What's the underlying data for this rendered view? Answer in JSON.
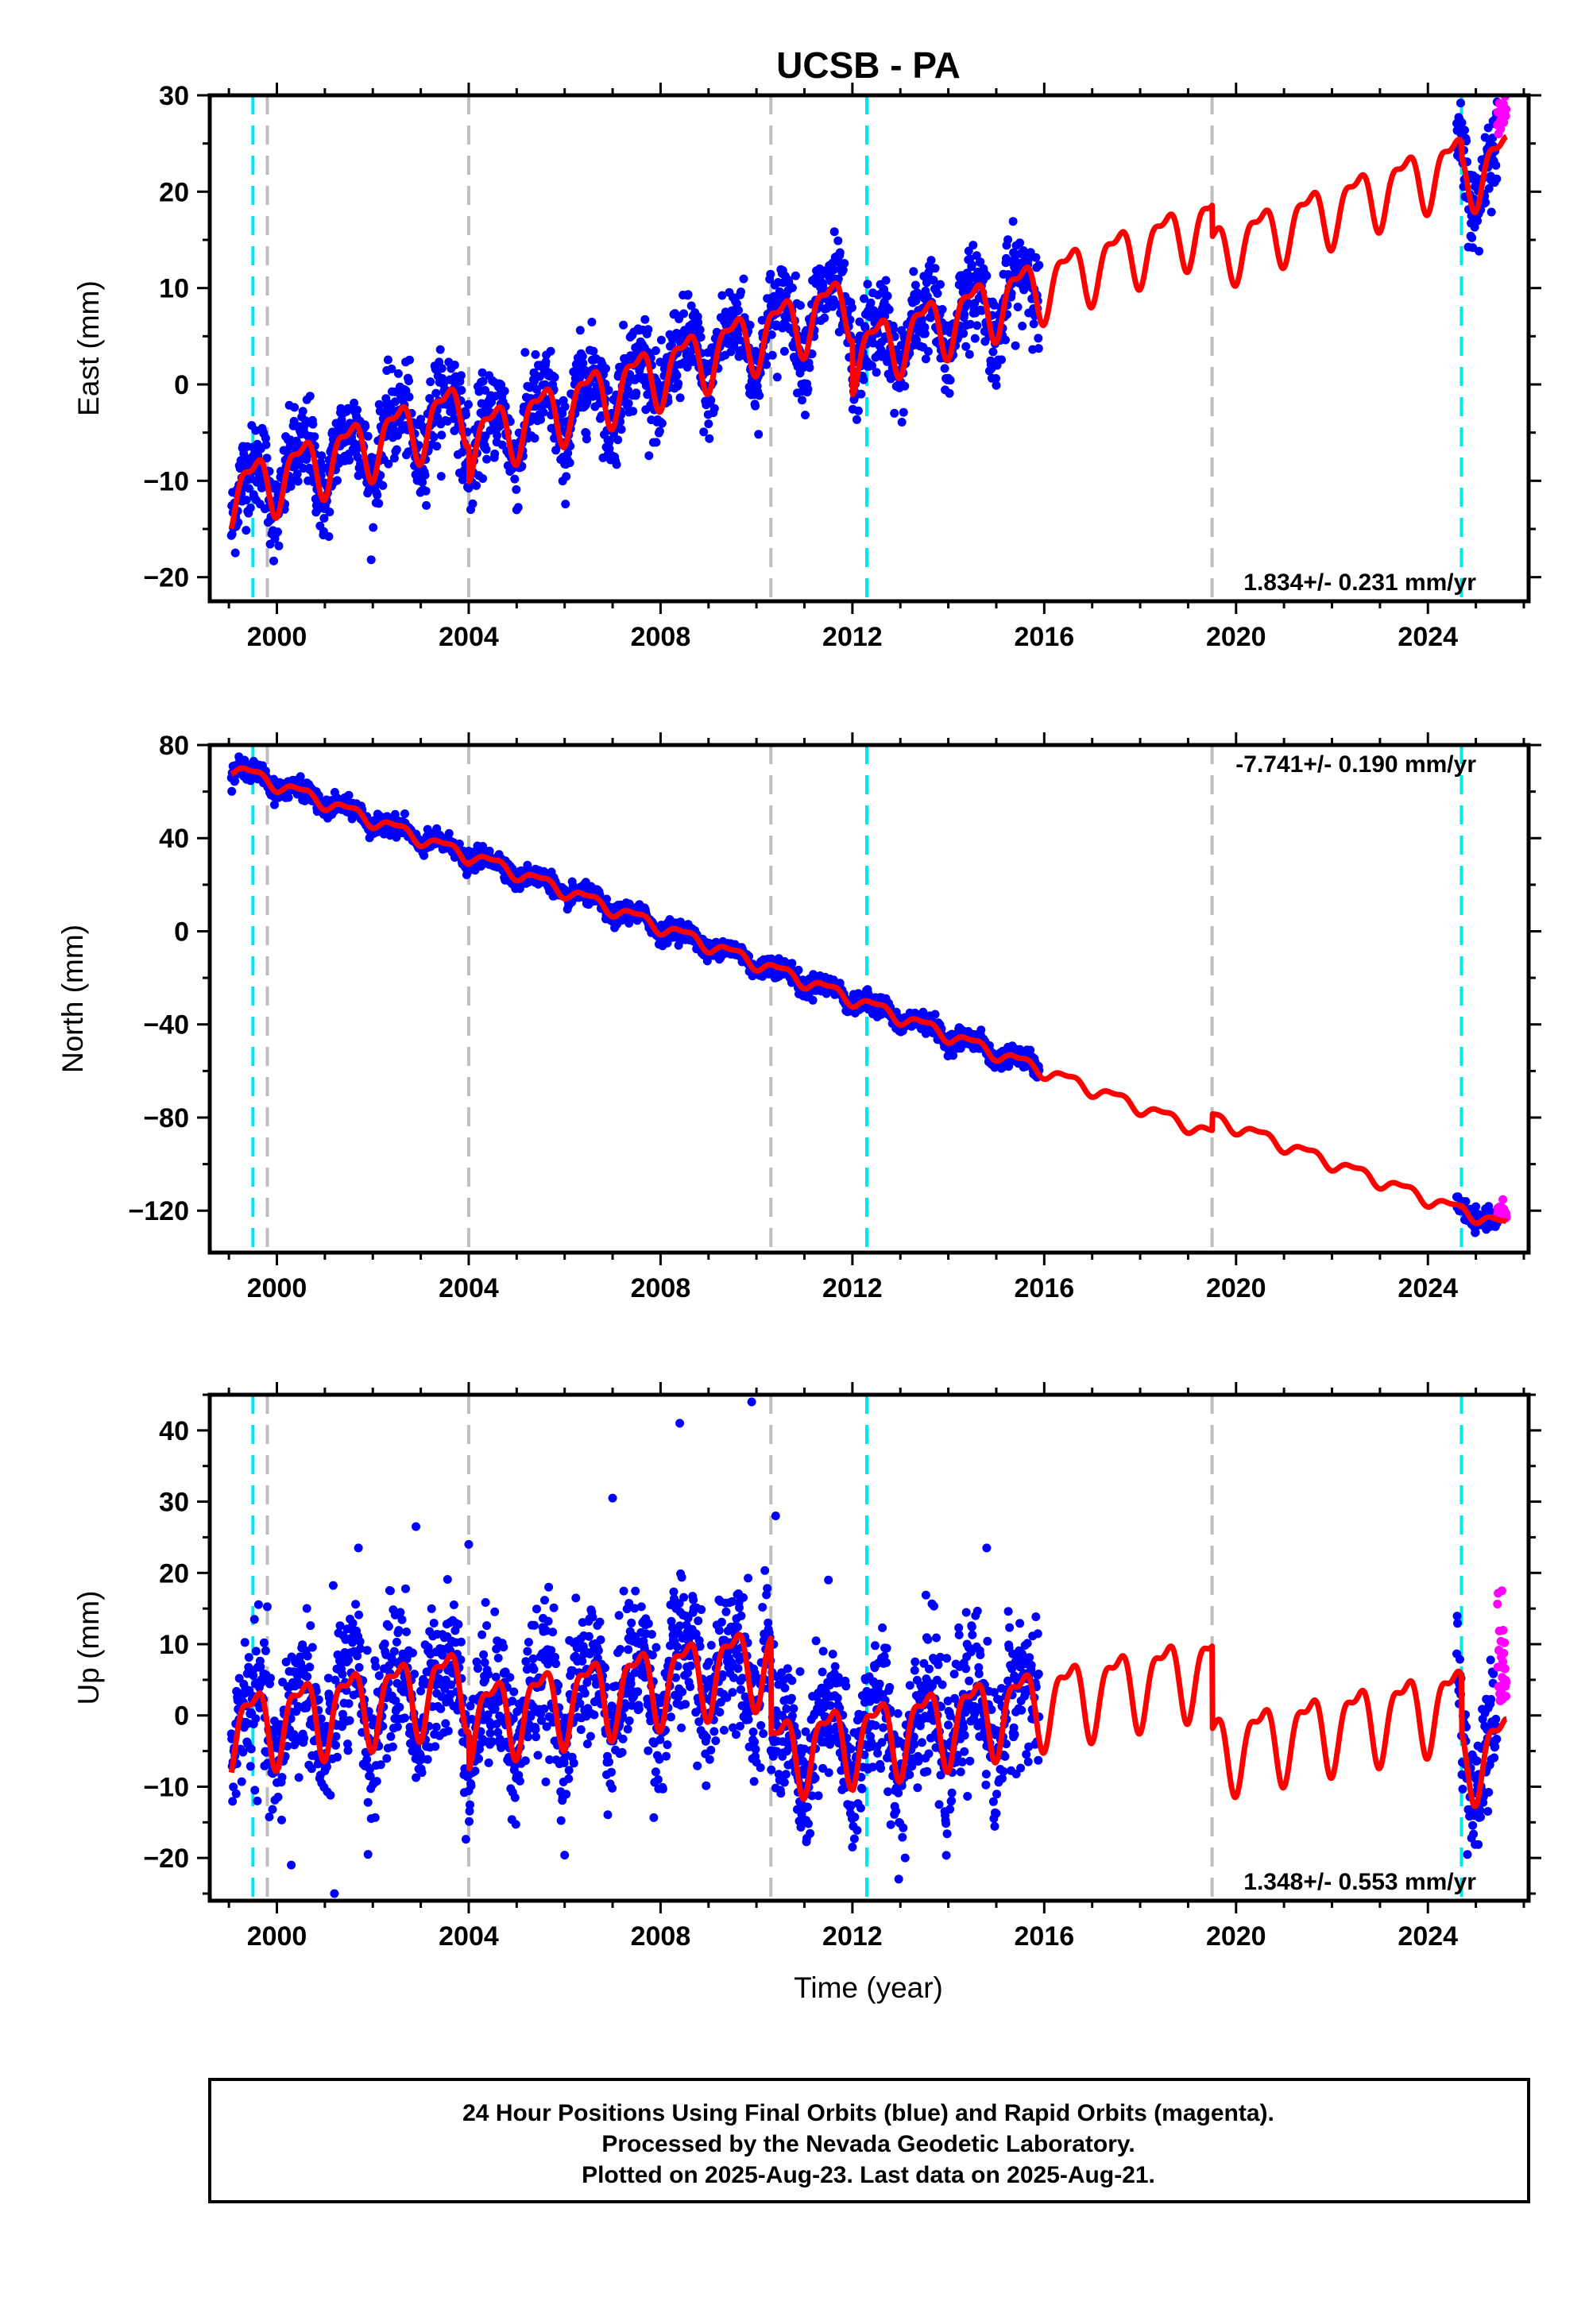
{
  "figure": {
    "title": "UCSB - PA",
    "xlabel": "Time (year)",
    "footer": [
      "24 Hour Positions Using Final Orbits (blue) and Rapid Orbits (magenta).",
      "Processed by the Nevada Geodetic Laboratory.",
      "Plotted on 2025-Aug-23. Last data on 2025-Aug-21."
    ]
  },
  "colors": {
    "final_orbits": "#0000ff",
    "rapid_orbits": "#ff00ff",
    "model_fit": "#ff0000",
    "equipment_change": "#00e5ee",
    "other_event": "#bebebe"
  },
  "chart_data": [
    {
      "type": "scatter",
      "ylabel": "East (mm)",
      "xlim": [
        1998.6,
        2026.1
      ],
      "ylim": [
        -22.5,
        30
      ],
      "xticks": [
        2000,
        2004,
        2008,
        2012,
        2016,
        2020,
        2024
      ],
      "yticks": [
        -20,
        -10,
        0,
        10,
        20,
        30
      ],
      "rate_text": "1.834+/- 0.231 mm/yr",
      "rate_position": "bottom-right",
      "trend": {
        "rate": 1.834,
        "offsets": [
          [
            1999.0,
            -11.5
          ],
          [
            2004.0,
            -6.0
          ],
          [
            2012.0,
            3.0
          ],
          [
            2019.5,
            13.5
          ],
          [
            2024.7,
            21.5
          ]
        ]
      },
      "seasonal_amplitude": 3.5,
      "scatter_spread": 2.3,
      "final_data_ranges": [
        [
          1999.05,
          2015.9
        ],
        [
          2024.6,
          2025.45
        ]
      ],
      "rapid_data_range": [
        2025.45,
        2025.64
      ],
      "model_range": [
        1999.05,
        2025.64
      ],
      "equipment_changes": [
        1999.5,
        2012.3,
        2024.7
      ],
      "other_events": [
        1999.8,
        2004.0,
        2010.3,
        2019.5
      ]
    },
    {
      "type": "scatter",
      "ylabel": "North (mm)",
      "xlim": [
        1998.6,
        2026.1
      ],
      "ylim": [
        -138,
        80
      ],
      "xticks": [
        2000,
        2004,
        2008,
        2012,
        2016,
        2020,
        2024
      ],
      "yticks": [
        -120,
        -80,
        -40,
        0,
        40,
        80
      ],
      "rate_text": "-7.741+/- 0.190 mm/yr",
      "rate_position": "top-right",
      "trend": {
        "rate": -7.741,
        "offsets": [
          [
            1999.0,
            71.0
          ],
          [
            2004.0,
            33.0
          ],
          [
            2012.0,
            -29.0
          ],
          [
            2019.5,
            -80.0
          ],
          [
            2024.7,
            -119.5
          ]
        ]
      },
      "seasonal_amplitude": 3.0,
      "scatter_spread": 2.0,
      "final_data_ranges": [
        [
          1999.05,
          2015.9
        ],
        [
          2024.6,
          2025.45
        ]
      ],
      "rapid_data_range": [
        2025.45,
        2025.64
      ],
      "model_range": [
        1999.05,
        2025.64
      ],
      "equipment_changes": [
        1999.5,
        2012.3,
        2024.7
      ],
      "other_events": [
        1999.8,
        2004.0,
        2010.3,
        2019.5
      ]
    },
    {
      "type": "scatter",
      "ylabel": "Up (mm)",
      "xlim": [
        1998.6,
        2026.1
      ],
      "ylim": [
        -26,
        45
      ],
      "xticks": [
        2000,
        2004,
        2008,
        2012,
        2016,
        2020,
        2024
      ],
      "yticks": [
        -20,
        -10,
        0,
        10,
        20,
        30,
        40
      ],
      "rate_text": "1.348+/- 0.553 mm/yr",
      "rate_position": "bottom-right",
      "trend": {
        "rate": 1.348,
        "offsets": [
          [
            1999.0,
            -2.0
          ],
          [
            2004.0,
            -0.5
          ],
          [
            2010.3,
            -5.5
          ],
          [
            2012.0,
            -3.5
          ],
          [
            2019.5,
            -5.0
          ],
          [
            2024.7,
            -6.0
          ]
        ]
      },
      "seasonal_amplitude": 6.0,
      "scatter_spread": 5.0,
      "final_data_ranges": [
        [
          1999.05,
          2015.9
        ],
        [
          2024.6,
          2025.45
        ]
      ],
      "rapid_data_range": [
        2025.45,
        2025.64
      ],
      "model_range": [
        1999.05,
        2025.64
      ],
      "equipment_changes": [
        1999.5,
        2012.3,
        2024.7
      ],
      "other_events": [
        1999.8,
        2004.0,
        2010.3,
        2019.5
      ],
      "outliers": [
        [
          2008.4,
          41
        ],
        [
          2009.9,
          44
        ],
        [
          2007.0,
          30.5
        ],
        [
          2010.4,
          28
        ],
        [
          2004.0,
          24
        ],
        [
          2002.9,
          26.5
        ],
        [
          2001.7,
          23.5
        ],
        [
          2014.8,
          23.5
        ],
        [
          2011.5,
          19
        ],
        [
          2001.2,
          -25
        ],
        [
          2000.3,
          -21
        ],
        [
          2013.1,
          -20
        ],
        [
          2001.9,
          -19.5
        ]
      ]
    }
  ]
}
